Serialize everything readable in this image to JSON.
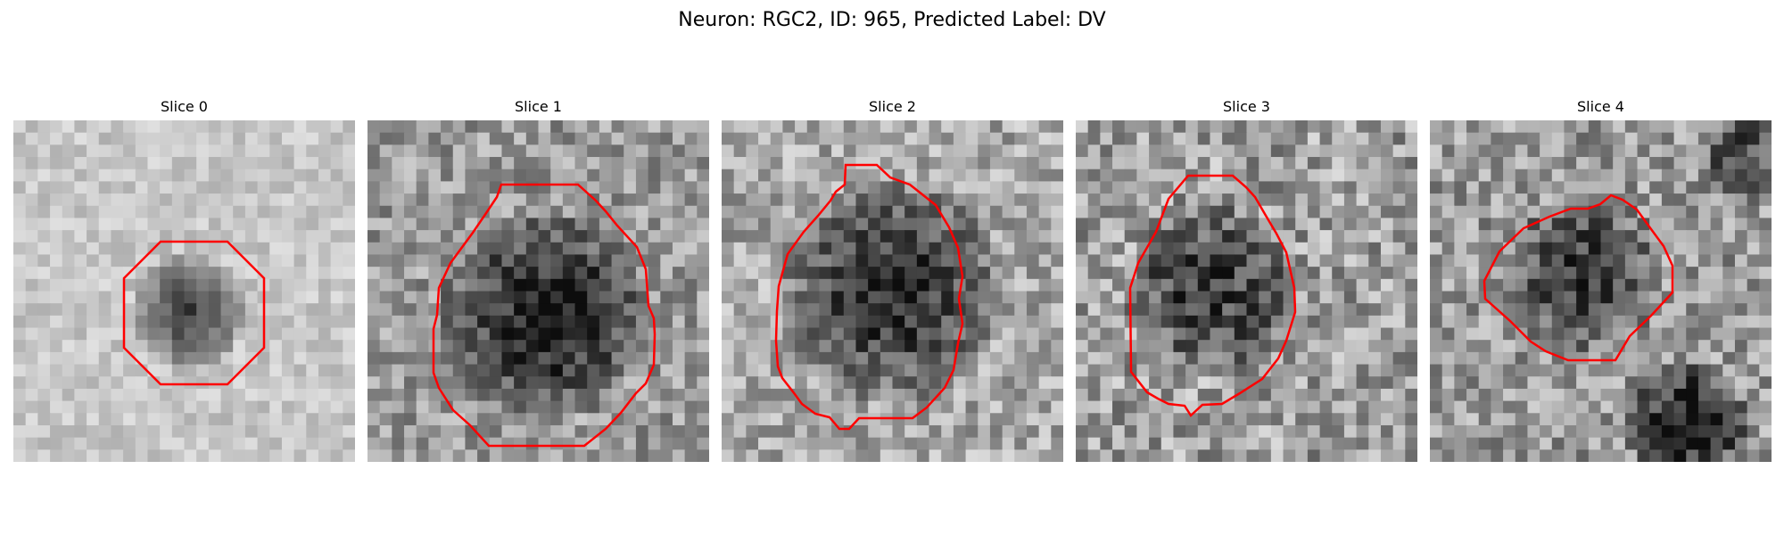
{
  "figure": {
    "suptitle": "Neuron: RGC2, ID: 965, Predicted Label: DV"
  },
  "panels": [
    {
      "title": "Slice 0"
    },
    {
      "title": "Slice 1"
    },
    {
      "title": "Slice 2"
    },
    {
      "title": "Slice 3"
    },
    {
      "title": "Slice 4"
    }
  ],
  "colors": {
    "contour": "#ff0000",
    "background": "#ffffff"
  }
}
